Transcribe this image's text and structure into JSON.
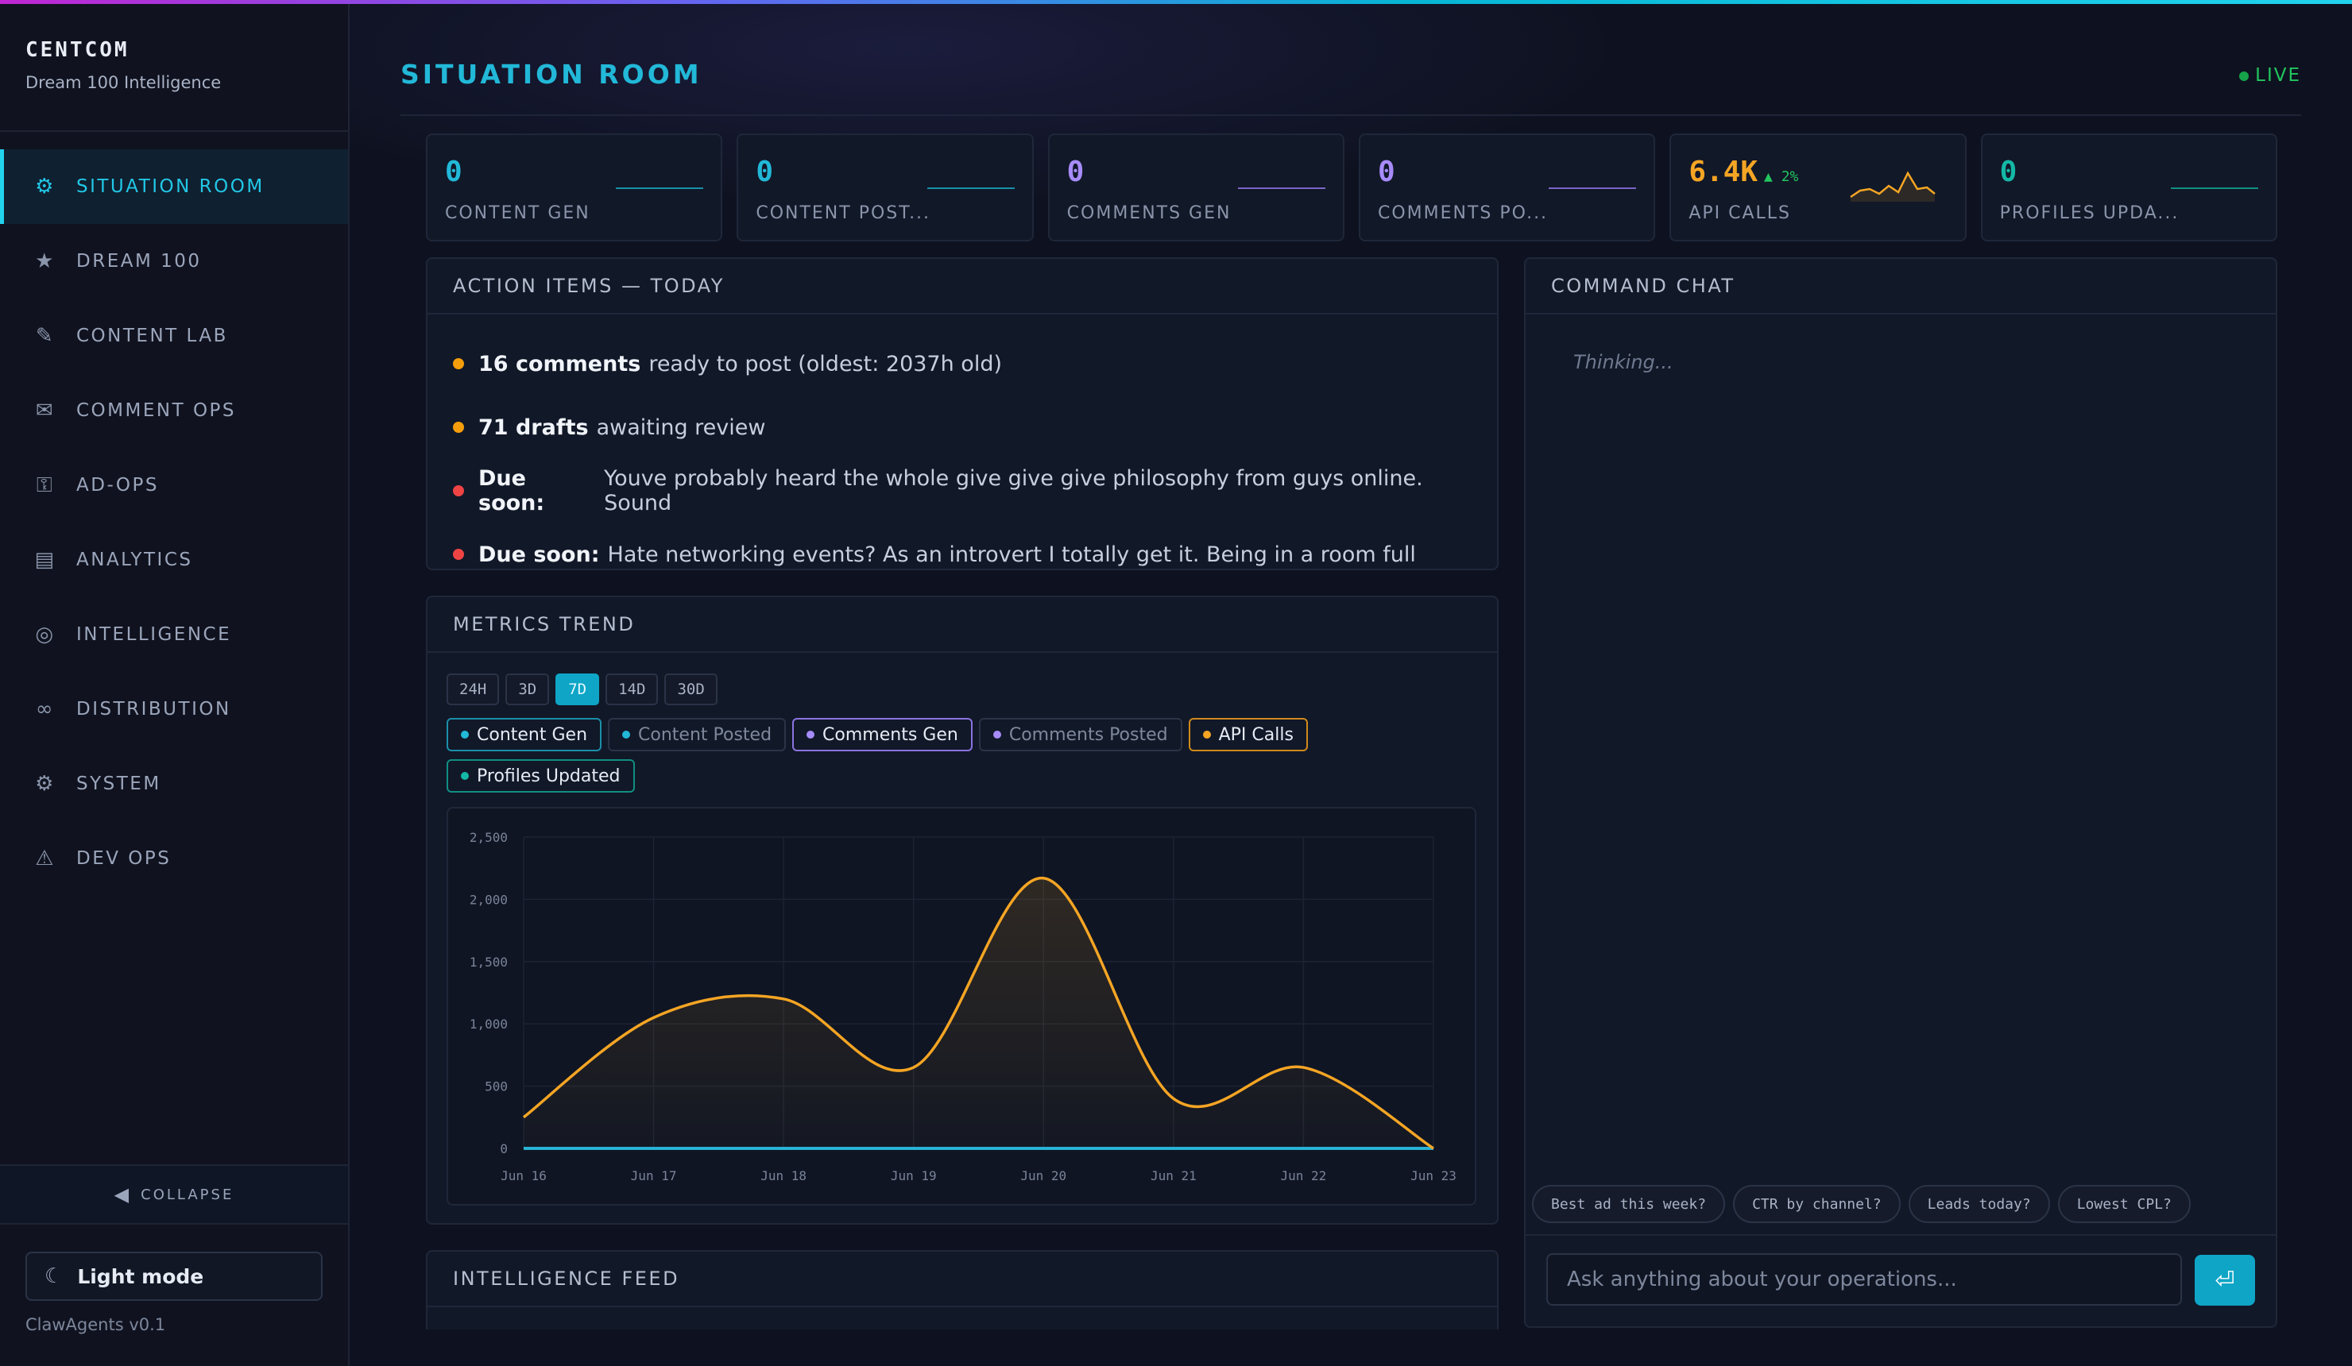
{
  "app": {
    "brand": "CENTCOM",
    "brand_sub": "Dream 100 Intelligence",
    "version": "ClawAgents v0.1",
    "accent": "#22d3ee"
  },
  "sidebar": {
    "items": [
      {
        "label": "SITUATION ROOM",
        "icon": "gear-icon",
        "active": true
      },
      {
        "label": "DREAM 100",
        "icon": "star-icon"
      },
      {
        "label": "CONTENT LAB",
        "icon": "pencil-icon"
      },
      {
        "label": "COMMENT OPS",
        "icon": "envelope-icon"
      },
      {
        "label": "AD-OPS",
        "icon": "key-icon"
      },
      {
        "label": "ANALYTICS",
        "icon": "table-icon"
      },
      {
        "label": "INTELLIGENCE",
        "icon": "target-icon"
      },
      {
        "label": "DISTRIBUTION",
        "icon": "infinity-icon"
      },
      {
        "label": "SYSTEM",
        "icon": "gear-icon"
      },
      {
        "label": "DEV OPS",
        "icon": "warning-icon"
      }
    ],
    "collapse_label": "COLLAPSE",
    "light_mode_label": "Light mode"
  },
  "header": {
    "title": "SITUATION ROOM",
    "live_label": "LIVE"
  },
  "kpis": [
    {
      "value": "0",
      "label": "CONTENT GEN",
      "color": "#22b8d8"
    },
    {
      "value": "0",
      "label": "CONTENT POST...",
      "color": "#22b8d8"
    },
    {
      "value": "0",
      "label": "COMMENTS GEN",
      "color": "#a78bfa"
    },
    {
      "value": "0",
      "label": "COMMENTS PO...",
      "color": "#a78bfa"
    },
    {
      "value": "6.4K",
      "delta": "▲ 2%",
      "label": "API CALLS",
      "color": "#f5a524"
    },
    {
      "value": "0",
      "label": "PROFILES UPDA...",
      "color": "#14b8a6"
    }
  ],
  "actions": {
    "title": "ACTION ITEMS — TODAY",
    "items": [
      {
        "bold": "16 comments",
        "text": "ready to post (oldest: 2037h old)",
        "color": "#f59e0b"
      },
      {
        "bold": "71 drafts",
        "text": "awaiting review",
        "color": "#f59e0b"
      },
      {
        "bold": "Due soon:",
        "text": "Youve probably heard the whole give give give philosophy from guys online. Sound",
        "color": "#ef4444"
      },
      {
        "bold": "Due soon:",
        "text": "Hate networking events? As an introvert I totally get it. Being in a room full",
        "color": "#ef4444"
      }
    ]
  },
  "metrics": {
    "title": "METRICS TREND",
    "ranges": [
      "24H",
      "3D",
      "7D",
      "14D",
      "30D"
    ],
    "active_range": "7D",
    "legend": [
      {
        "label": "Content Gen",
        "color": "#22b8d8",
        "on": true
      },
      {
        "label": "Content Posted",
        "color": "#22b8d8",
        "on": false
      },
      {
        "label": "Comments Gen",
        "color": "#a78bfa",
        "on": true
      },
      {
        "label": "Comments Posted",
        "color": "#a78bfa",
        "on": false
      },
      {
        "label": "API Calls",
        "color": "#f5a524",
        "on": true
      },
      {
        "label": "Profiles Updated",
        "color": "#14b8a6",
        "on": true
      }
    ]
  },
  "chart_data": {
    "type": "area",
    "categories": [
      "Jun 16",
      "Jun 17",
      "Jun 18",
      "Jun 19",
      "Jun 20",
      "Jun 21",
      "Jun 22",
      "Jun 23"
    ],
    "ylim": [
      0,
      2500
    ],
    "yticks": [
      "0",
      "500",
      "1,000",
      "1,500",
      "2,000",
      "2,500"
    ],
    "grid": true,
    "series": [
      {
        "name": "API Calls",
        "color": "#f5a524",
        "values": [
          250,
          1050,
          1200,
          650,
          2170,
          400,
          650,
          0
        ]
      },
      {
        "name": "Content Gen",
        "color": "#22b8d8",
        "values": [
          0,
          0,
          0,
          0,
          0,
          0,
          0,
          0
        ]
      },
      {
        "name": "Comments Gen",
        "color": "#a78bfa",
        "values": [
          0,
          0,
          0,
          0,
          0,
          0,
          0,
          0
        ]
      },
      {
        "name": "Profiles Updated",
        "color": "#14b8a6",
        "values": [
          0,
          0,
          0,
          0,
          0,
          0,
          0,
          0
        ]
      }
    ]
  },
  "intel": {
    "title": "INTELLIGENCE FEED"
  },
  "chat": {
    "title": "COMMAND CHAT",
    "status": "Thinking...",
    "suggestions": [
      "Best ad this week?",
      "CTR by channel?",
      "Leads today?",
      "Lowest CPL?"
    ],
    "placeholder": "Ask anything about your operations...",
    "send_icon": "enter-icon"
  }
}
